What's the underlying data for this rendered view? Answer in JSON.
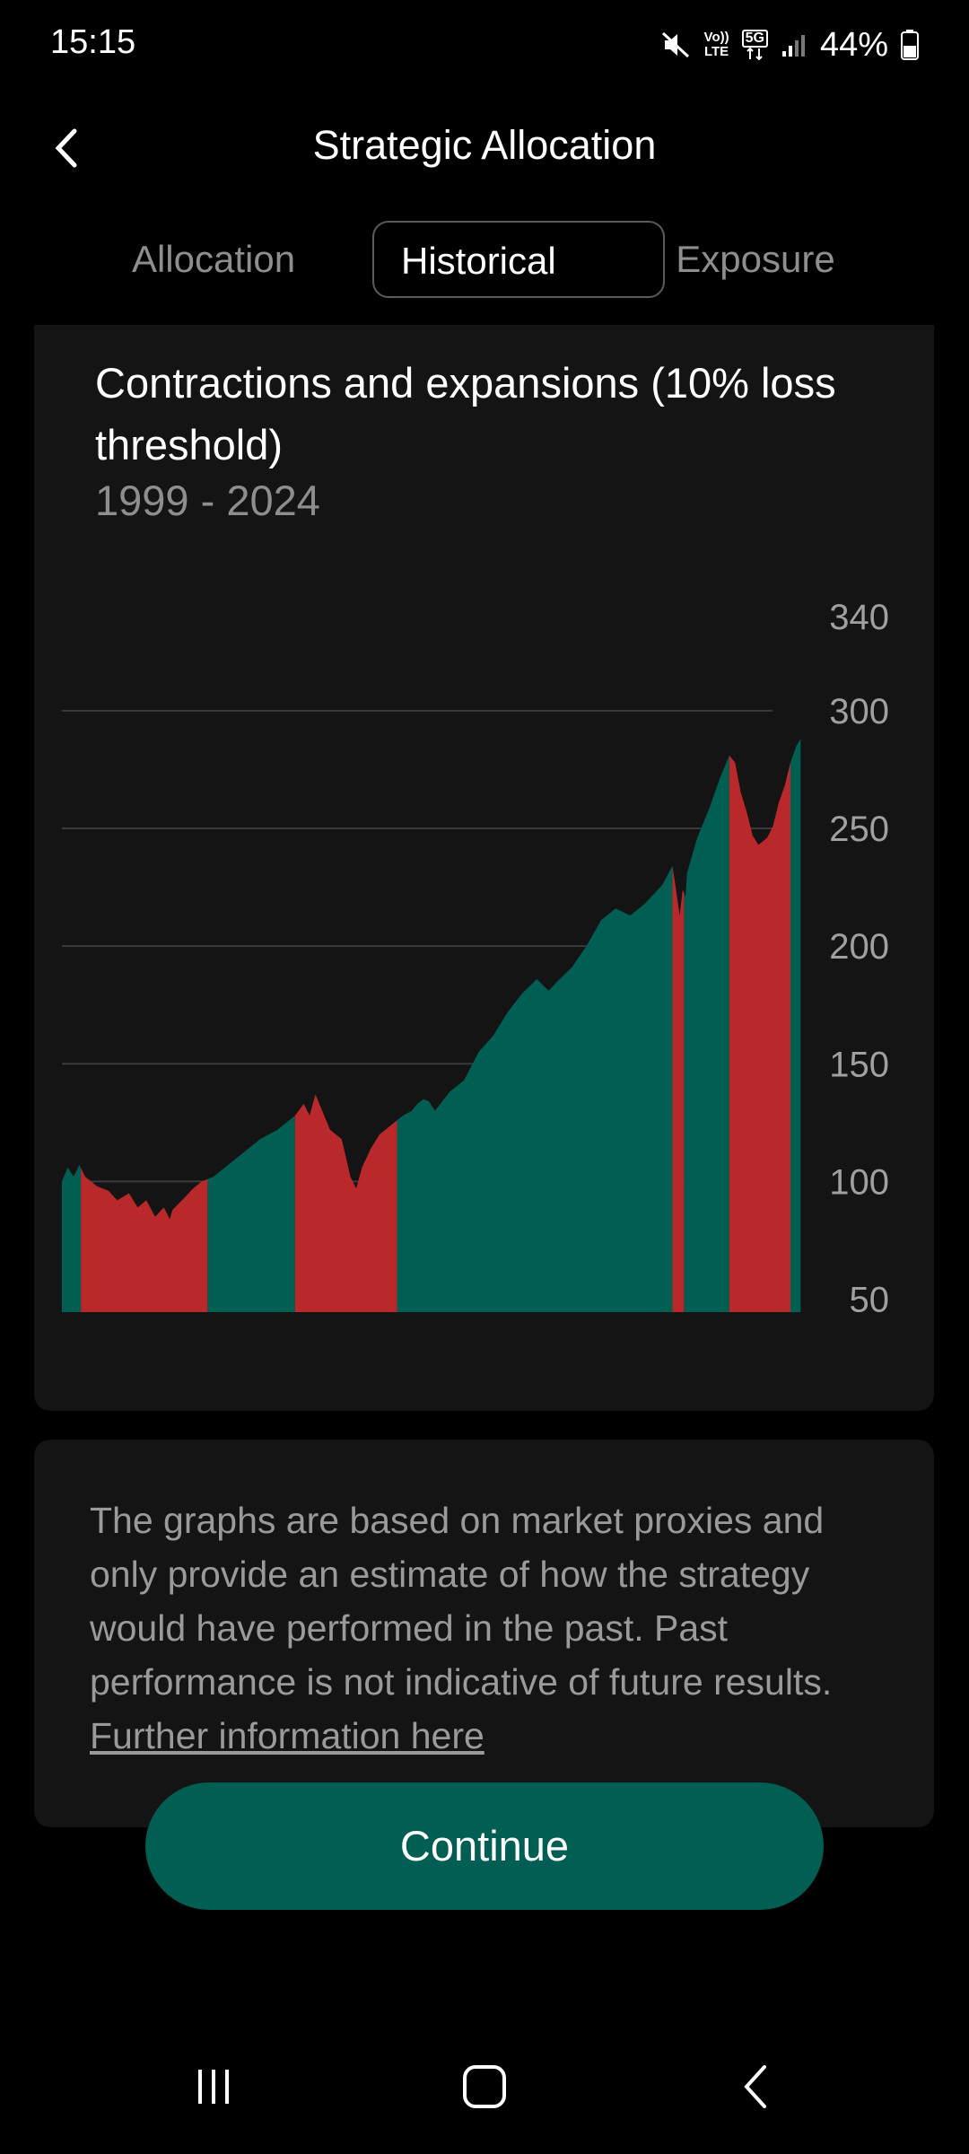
{
  "status_bar": {
    "time": "15:15",
    "battery": "44%",
    "icons": [
      "mute-icon",
      "volte-icon",
      "5g-icon",
      "signal-icon",
      "battery-icon"
    ],
    "volte_top": "Vo))",
    "volte_bottom": "LTE",
    "net_label": "5G"
  },
  "header": {
    "title": "Strategic Allocation",
    "back_icon": "chevron-left-icon"
  },
  "tabs": [
    {
      "label": "Allocation",
      "active": false
    },
    {
      "label": "Historical",
      "active": true
    },
    {
      "label": "Exposure",
      "active": false
    }
  ],
  "chart_card": {
    "title": "Contractions and expansions (10% loss threshold)",
    "subtitle": "1999 - 2024"
  },
  "chart_data": {
    "type": "area",
    "title": "Contractions and expansions (10% loss threshold)",
    "subtitle": "1999 - 2024",
    "x_range": [
      1999,
      2024
    ],
    "y_ticks": [
      340,
      300,
      250,
      200,
      150,
      100,
      50
    ],
    "ylim": [
      30,
      340
    ],
    "grid": true,
    "colors": {
      "expansion": "#005e52",
      "contraction": "#b9292b"
    },
    "series": [
      {
        "x": 1999.0,
        "y": 100
      },
      {
        "x": 1999.2,
        "y": 106
      },
      {
        "x": 1999.4,
        "y": 102
      },
      {
        "x": 1999.6,
        "y": 107
      },
      {
        "x": 1999.8,
        "y": 102
      },
      {
        "x": 2000.2,
        "y": 98
      },
      {
        "x": 2000.6,
        "y": 96
      },
      {
        "x": 2000.9,
        "y": 92
      },
      {
        "x": 2001.3,
        "y": 95
      },
      {
        "x": 2001.6,
        "y": 89
      },
      {
        "x": 2001.9,
        "y": 92
      },
      {
        "x": 2002.2,
        "y": 85
      },
      {
        "x": 2002.5,
        "y": 89
      },
      {
        "x": 2002.7,
        "y": 84
      },
      {
        "x": 2002.8,
        "y": 88
      },
      {
        "x": 2003.2,
        "y": 93
      },
      {
        "x": 2003.5,
        "y": 97
      },
      {
        "x": 2003.8,
        "y": 100
      },
      {
        "x": 2004.0,
        "y": 101
      },
      {
        "x": 2004.2,
        "y": 102
      },
      {
        "x": 2004.6,
        "y": 106
      },
      {
        "x": 2005.2,
        "y": 112
      },
      {
        "x": 2005.8,
        "y": 118
      },
      {
        "x": 2006.4,
        "y": 122
      },
      {
        "x": 2007.0,
        "y": 128
      },
      {
        "x": 2007.3,
        "y": 133
      },
      {
        "x": 2007.5,
        "y": 128
      },
      {
        "x": 2007.7,
        "y": 137
      },
      {
        "x": 2007.9,
        "y": 131
      },
      {
        "x": 2008.2,
        "y": 122
      },
      {
        "x": 2008.6,
        "y": 118
      },
      {
        "x": 2008.9,
        "y": 102
      },
      {
        "x": 2009.1,
        "y": 97
      },
      {
        "x": 2009.3,
        "y": 106
      },
      {
        "x": 2009.6,
        "y": 114
      },
      {
        "x": 2009.9,
        "y": 120
      },
      {
        "x": 2010.3,
        "y": 124
      },
      {
        "x": 2010.7,
        "y": 128
      },
      {
        "x": 2011.0,
        "y": 130
      },
      {
        "x": 2011.2,
        "y": 133
      },
      {
        "x": 2011.4,
        "y": 135
      },
      {
        "x": 2011.6,
        "y": 134
      },
      {
        "x": 2011.8,
        "y": 130
      },
      {
        "x": 2012.3,
        "y": 138
      },
      {
        "x": 2012.8,
        "y": 143
      },
      {
        "x": 2013.3,
        "y": 155
      },
      {
        "x": 2013.8,
        "y": 162
      },
      {
        "x": 2014.3,
        "y": 172
      },
      {
        "x": 2014.8,
        "y": 180
      },
      {
        "x": 2015.3,
        "y": 186
      },
      {
        "x": 2015.7,
        "y": 181
      },
      {
        "x": 2016.0,
        "y": 185
      },
      {
        "x": 2016.5,
        "y": 191
      },
      {
        "x": 2017.0,
        "y": 200
      },
      {
        "x": 2017.5,
        "y": 211
      },
      {
        "x": 2018.0,
        "y": 216
      },
      {
        "x": 2018.5,
        "y": 213
      },
      {
        "x": 2019.0,
        "y": 218
      },
      {
        "x": 2019.6,
        "y": 226
      },
      {
        "x": 2019.95,
        "y": 234
      },
      {
        "x": 2020.05,
        "y": 226
      },
      {
        "x": 2020.2,
        "y": 213
      },
      {
        "x": 2020.3,
        "y": 224
      },
      {
        "x": 2020.4,
        "y": 221
      },
      {
        "x": 2020.45,
        "y": 231
      },
      {
        "x": 2020.8,
        "y": 246
      },
      {
        "x": 2021.2,
        "y": 258
      },
      {
        "x": 2021.6,
        "y": 272
      },
      {
        "x": 2021.9,
        "y": 281
      },
      {
        "x": 2022.1,
        "y": 278
      },
      {
        "x": 2022.3,
        "y": 265
      },
      {
        "x": 2022.5,
        "y": 257
      },
      {
        "x": 2022.7,
        "y": 247
      },
      {
        "x": 2022.9,
        "y": 243
      },
      {
        "x": 2023.2,
        "y": 246
      },
      {
        "x": 2023.4,
        "y": 251
      },
      {
        "x": 2023.6,
        "y": 261
      },
      {
        "x": 2023.8,
        "y": 268
      },
      {
        "x": 2024.0,
        "y": 278
      },
      {
        "x": 2024.2,
        "y": 285
      },
      {
        "x": 2024.35,
        "y": 288
      }
    ],
    "phases": [
      {
        "start": 1999.0,
        "end": 1999.65,
        "kind": "expansion"
      },
      {
        "start": 1999.65,
        "end": 2004.0,
        "kind": "contraction"
      },
      {
        "start": 2004.0,
        "end": 2007.0,
        "kind": "expansion"
      },
      {
        "start": 2007.0,
        "end": 2010.5,
        "kind": "contraction"
      },
      {
        "start": 2010.5,
        "end": 2019.95,
        "kind": "expansion"
      },
      {
        "start": 2019.95,
        "end": 2020.35,
        "kind": "contraction"
      },
      {
        "start": 2020.35,
        "end": 2021.9,
        "kind": "expansion"
      },
      {
        "start": 2021.9,
        "end": 2024.0,
        "kind": "contraction"
      },
      {
        "start": 2024.0,
        "end": 2024.35,
        "kind": "expansion"
      }
    ]
  },
  "disclaimer": {
    "text": "The graphs are based on market proxies and only provide an estimate of how the strategy would have performed in the past. Past performance is not indicative of future results.",
    "link": "Further information here"
  },
  "continue_button": {
    "label": "Continue"
  },
  "nav_bar": {
    "icons": [
      "recents-icon",
      "home-icon",
      "back-icon"
    ]
  }
}
